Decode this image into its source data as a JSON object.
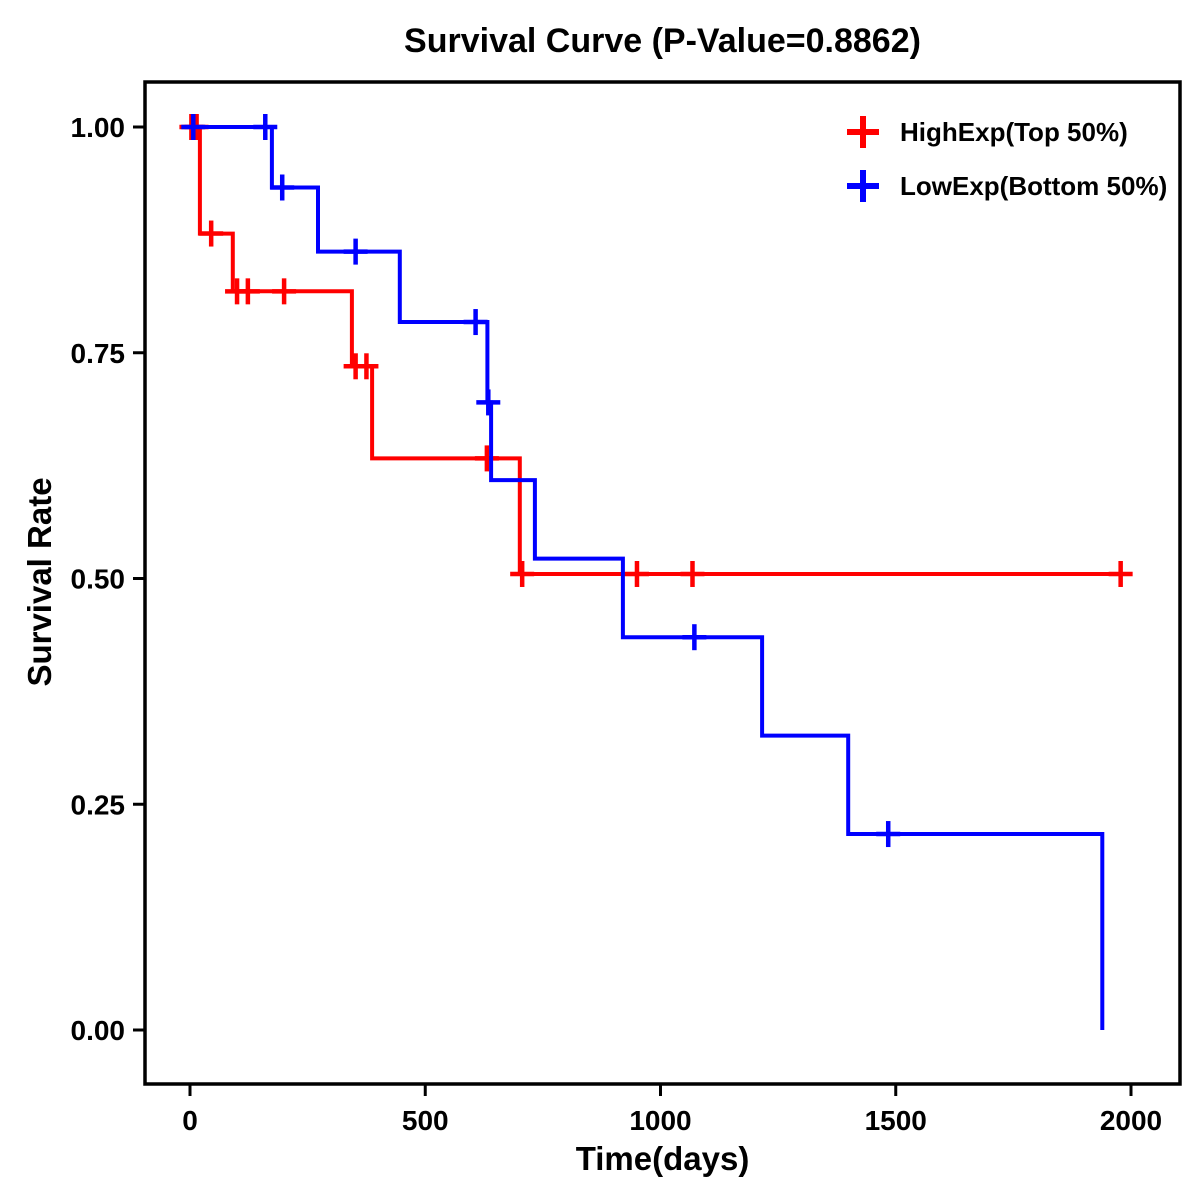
{
  "title": "Survival Curve (P-Value=0.8862)",
  "p_value": "0.8862",
  "chart_data": {
    "type": "line",
    "subtype": "kaplan-meier-step",
    "title": "Survival Curve (P-Value=0.8862)",
    "xlabel": "Time(days)",
    "ylabel": "Survival Rate",
    "xticks": [
      0,
      500,
      1000,
      1500,
      2000
    ],
    "xtick_labels": [
      "0",
      "500",
      "1000",
      "1500",
      "2000"
    ],
    "yticks": [
      0.0,
      0.25,
      0.5,
      0.75,
      1.0
    ],
    "ytick_labels": [
      "0.00",
      "0.25",
      "0.50",
      "0.75",
      "1.00"
    ],
    "xlim": [
      -96,
      2104
    ],
    "ylim": [
      -0.06,
      1.05
    ],
    "grid": false,
    "legend_position": "top-right",
    "series": [
      {
        "name": "HighExp(Top 50%)",
        "color": "#FF0000",
        "steps": [
          [
            0,
            1.0
          ],
          [
            21,
            0.882
          ],
          [
            91,
            0.818
          ],
          [
            344,
            0.735
          ],
          [
            387,
            0.633
          ],
          [
            701,
            0.505
          ],
          [
            1978,
            0.505
          ]
        ],
        "censors": [
          [
            3,
            1.0
          ],
          [
            14,
            1.0
          ],
          [
            45,
            0.882
          ],
          [
            100,
            0.818
          ],
          [
            123,
            0.818
          ],
          [
            200,
            0.818
          ],
          [
            352,
            0.735
          ],
          [
            375,
            0.735
          ],
          [
            631,
            0.633
          ],
          [
            706,
            0.505
          ],
          [
            950,
            0.505
          ],
          [
            1068,
            0.505
          ],
          [
            1978,
            0.505
          ]
        ]
      },
      {
        "name": "LowExp(Bottom 50%)",
        "color": "#0000FF",
        "steps": [
          [
            0,
            1.0
          ],
          [
            174,
            0.933
          ],
          [
            272,
            0.862
          ],
          [
            446,
            0.784
          ],
          [
            632,
            0.695
          ],
          [
            640,
            0.609
          ],
          [
            733,
            0.522
          ],
          [
            920,
            0.435
          ],
          [
            1216,
            0.326
          ],
          [
            1399,
            0.217
          ],
          [
            1939,
            0.0
          ]
        ],
        "censors": [
          [
            7,
            1.0
          ],
          [
            160,
            1.0
          ],
          [
            196,
            0.933
          ],
          [
            352,
            0.862
          ],
          [
            607,
            0.784
          ],
          [
            634,
            0.695
          ],
          [
            1072,
            0.435
          ],
          [
            1484,
            0.217
          ]
        ]
      }
    ]
  }
}
